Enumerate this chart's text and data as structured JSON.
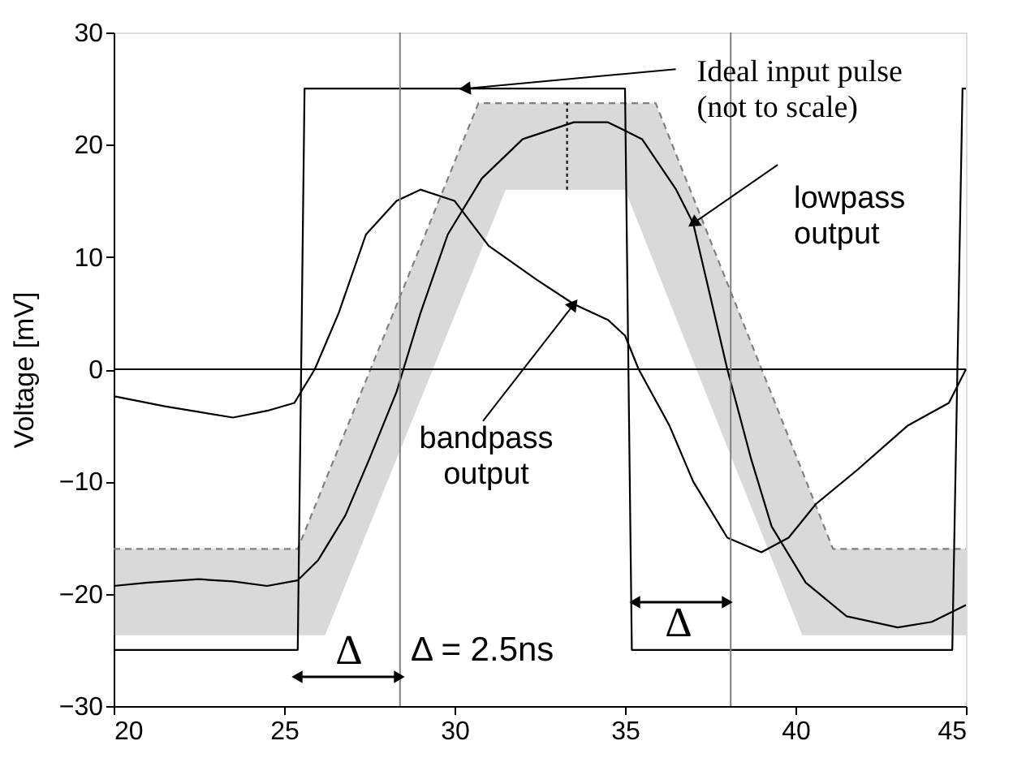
{
  "chart_data": {
    "type": "line",
    "ylabel": "Voltage   [mV]",
    "xlim": [
      20,
      45
    ],
    "ylim": [
      -30,
      30
    ],
    "xticks": [
      20,
      25,
      30,
      35,
      40,
      45
    ],
    "yticks": [
      -30,
      -20,
      -10,
      0,
      10,
      20,
      30
    ],
    "grid": false,
    "marker": "none",
    "series": [
      {
        "color": "#808080",
        "line_style": "dashed",
        "x": [
          20,
          25.4,
          26.2,
          30.7,
          31.5,
          35,
          35.9,
          40.2,
          41.1,
          45
        ],
        "values": [
          -16,
          -16,
          -10,
          23.7,
          23.7,
          23.7,
          23.7,
          -9.1,
          -16,
          -16
        ],
        "upper": [
          -16,
          -16,
          -10,
          23.7,
          23.7,
          23.7,
          23.7,
          -9.1,
          -16,
          -16
        ],
        "lower": [
          -23.7,
          -23.7,
          -23.7,
          10,
          16,
          16,
          9.1,
          -23.7,
          -23.7,
          -23.7
        ]
      },
      {
        "color": "#000000",
        "line_style": "dotted",
        "x": [
          33.3,
          33.3
        ],
        "values": [
          16,
          23.7
        ]
      },
      {
        "color": "#000000",
        "line_style": "solid",
        "x": [
          20,
          25.4,
          25.6,
          35,
          35.2,
          44.6,
          44.9,
          45
        ],
        "values": [
          -25,
          -25,
          25,
          25,
          -25,
          -25,
          25,
          25
        ]
      },
      {
        "color": "#000000",
        "line_style": "solid",
        "x": [
          20,
          21,
          22.5,
          23.5,
          24.5,
          25.4,
          26,
          26.8,
          27.5,
          28.3,
          29,
          29.8,
          30.8,
          32,
          33.5,
          34.5,
          35.5,
          36.5,
          37,
          37.5,
          38,
          38.7,
          39.3,
          40.3,
          41.5,
          43,
          44,
          45
        ],
        "values": [
          -19.3,
          -19,
          -18.7,
          -18.9,
          -19.3,
          -18.8,
          -17,
          -13,
          -8,
          -2,
          5,
          12,
          17,
          20.5,
          22,
          22,
          20.5,
          16,
          13,
          6.5,
          0,
          -8,
          -14,
          -19,
          -22,
          -23,
          -22.5,
          -21
        ]
      },
      {
        "color": "#000000",
        "line_style": "solid",
        "x": [
          20,
          21.5,
          23.5,
          24.5,
          25.3,
          25.9,
          26.6,
          27.4,
          28.3,
          29,
          30,
          31,
          32.4,
          33.5,
          34.5,
          35,
          35.4,
          36.3,
          37,
          38,
          39,
          39.8,
          40.6,
          41.8,
          43.3,
          44.5,
          45
        ],
        "values": [
          -2.4,
          -3.3,
          -4.3,
          -3.7,
          -3,
          0,
          5,
          12,
          15,
          16,
          15,
          11,
          8,
          5.8,
          4.4,
          3,
          0,
          -5,
          -10,
          -15,
          -16.3,
          -15,
          -12,
          -9,
          -5,
          -3,
          0
        ]
      }
    ],
    "ref_lines": [
      {
        "axis": "y",
        "value": 0,
        "color": "#000000"
      },
      {
        "axis": "x",
        "value": 28.4,
        "color": "#808080"
      },
      {
        "axis": "x",
        "value": 38.1,
        "color": "#808080"
      }
    ],
    "annotations": [
      {
        "text": "Ideal input pulse\n(not to scale)",
        "x": 30.3,
        "y": 25
      },
      {
        "text": "lowpass\noutput",
        "x": 37,
        "y": 13
      },
      {
        "text": "bandpass\noutput",
        "x": 33.5,
        "y": 5.8
      },
      "Δ",
      "Δ = 2.5ns",
      "Δ"
    ]
  }
}
